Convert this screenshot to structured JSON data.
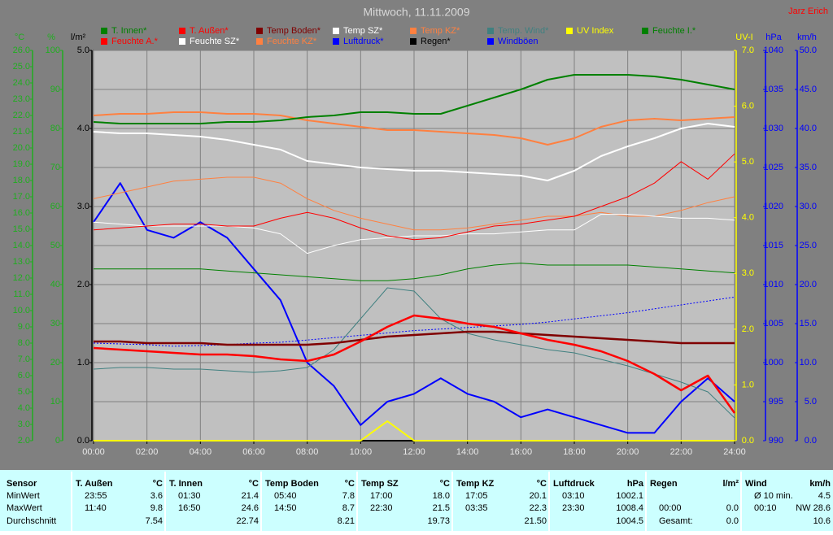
{
  "chart_data": {
    "type": "line",
    "title": "Mittwoch, 11.11.2009",
    "author": "Jarz Erich",
    "x": [
      0,
      1,
      2,
      3,
      4,
      5,
      6,
      7,
      8,
      9,
      10,
      11,
      12,
      13,
      14,
      15,
      16,
      17,
      18,
      19,
      20,
      21,
      22,
      23,
      24
    ],
    "xlim": [
      0,
      24
    ],
    "xticks": [
      {
        "value": 0,
        "label": "00:00"
      },
      {
        "value": 2,
        "label": "02:00"
      },
      {
        "value": 4,
        "label": "04:00"
      },
      {
        "value": 6,
        "label": "06:00"
      },
      {
        "value": 8,
        "label": "08:00"
      },
      {
        "value": 10,
        "label": "10:00"
      },
      {
        "value": 12,
        "label": "12:00"
      },
      {
        "value": 14,
        "label": "14:00"
      },
      {
        "value": 16,
        "label": "16:00"
      },
      {
        "value": 18,
        "label": "18:00"
      },
      {
        "value": 20,
        "label": "20:00"
      },
      {
        "value": 22,
        "label": "22:00"
      },
      {
        "value": 24,
        "label": "24:00"
      }
    ],
    "grid": true,
    "axes": [
      {
        "label": "°C",
        "color": "#1fae1f",
        "ylim": [
          2,
          26
        ],
        "yticks": [
          {
            "value": 2,
            "label": "2.0"
          },
          {
            "value": 3,
            "label": "3.0"
          },
          {
            "value": 4,
            "label": "4.0"
          },
          {
            "value": 5,
            "label": "5.0"
          },
          {
            "value": 6,
            "label": "6.0"
          },
          {
            "value": 7,
            "label": "7.0"
          },
          {
            "value": 8,
            "label": "8.0"
          },
          {
            "value": 9,
            "label": "9.0"
          },
          {
            "value": 10,
            "label": "10.0"
          },
          {
            "value": 11,
            "label": "11.0"
          },
          {
            "value": 12,
            "label": "12.0"
          },
          {
            "value": 13,
            "label": "13.0"
          },
          {
            "value": 14,
            "label": "14.0"
          },
          {
            "value": 15,
            "label": "15.0"
          },
          {
            "value": 16,
            "label": "16.0"
          },
          {
            "value": 17,
            "label": "17.0"
          },
          {
            "value": 18,
            "label": "18.0"
          },
          {
            "value": 19,
            "label": "19.0"
          },
          {
            "value": 20,
            "label": "20.0"
          },
          {
            "value": 21,
            "label": "21.0"
          },
          {
            "value": 22,
            "label": "22.0"
          },
          {
            "value": 23,
            "label": "23.0"
          },
          {
            "value": 24,
            "label": "24.0"
          },
          {
            "value": 25,
            "label": "25.0"
          },
          {
            "value": 26,
            "label": "26.0"
          }
        ]
      },
      {
        "label": "%",
        "color": "#1fae1f",
        "ylim": [
          0,
          100
        ],
        "yticks": [
          0,
          10,
          20,
          30,
          40,
          50,
          60,
          70,
          80,
          90,
          100
        ]
      },
      {
        "label": "l/m²",
        "color": "#000000",
        "ylim": [
          0,
          5
        ],
        "yticks": [
          {
            "value": 0,
            "label": "0.0"
          },
          {
            "value": 1,
            "label": "1.0"
          },
          {
            "value": 2,
            "label": "2.0"
          },
          {
            "value": 3,
            "label": "3.0"
          },
          {
            "value": 4,
            "label": "4.0"
          },
          {
            "value": 5,
            "label": "5.0"
          }
        ]
      },
      {
        "label": "UV-I",
        "color": "#ffff00",
        "ylim": [
          0,
          7
        ],
        "yticks": [
          {
            "value": 0,
            "label": "0.0"
          },
          {
            "value": 1,
            "label": "1.0"
          },
          {
            "value": 2,
            "label": "2.0"
          },
          {
            "value": 3,
            "label": "3.0"
          },
          {
            "value": 4,
            "label": "4.0"
          },
          {
            "value": 5,
            "label": "5.0"
          },
          {
            "value": 6,
            "label": "6.0"
          },
          {
            "value": 7,
            "label": "7.0"
          }
        ]
      },
      {
        "label": "hPa",
        "color": "#0000ff",
        "ylim": [
          990,
          1040
        ],
        "yticks": [
          990,
          995,
          1000,
          1005,
          1010,
          1015,
          1020,
          1025,
          1030,
          1035,
          1040
        ]
      },
      {
        "label": "km/h",
        "color": "#0000ff",
        "ylim": [
          0,
          50
        ],
        "yticks": [
          {
            "value": 0,
            "label": "0.0"
          },
          {
            "value": 5,
            "label": "5.0"
          },
          {
            "value": 10,
            "label": "10.0"
          },
          {
            "value": 15,
            "label": "15.0"
          },
          {
            "value": 20,
            "label": "20.0"
          },
          {
            "value": 25,
            "label": "25.0"
          },
          {
            "value": 30,
            "label": "30.0"
          },
          {
            "value": 35,
            "label": "35.0"
          },
          {
            "value": 40,
            "label": "40.0"
          },
          {
            "value": 45,
            "label": "45.0"
          },
          {
            "value": 50,
            "label": "50.0"
          }
        ]
      }
    ],
    "series": [
      {
        "name": "T. Innen*",
        "color": "#008000",
        "axis": 0,
        "line_width": 2,
        "values": [
          21.6,
          21.5,
          21.5,
          21.5,
          21.5,
          21.6,
          21.6,
          21.7,
          21.9,
          22.0,
          22.2,
          22.2,
          22.1,
          22.1,
          22.6,
          23.1,
          23.6,
          24.2,
          24.5,
          24.5,
          24.5,
          24.4,
          24.2,
          23.9,
          23.6
        ]
      },
      {
        "name": "T. Außen*",
        "color": "#ff0000",
        "axis": 0,
        "line_width": 2.5,
        "values": [
          7.7,
          7.6,
          7.5,
          7.4,
          7.3,
          7.3,
          7.2,
          7.0,
          6.9,
          7.3,
          8.1,
          9.0,
          9.7,
          9.5,
          9.2,
          9.0,
          8.6,
          8.2,
          7.9,
          7.5,
          6.9,
          6.1,
          5.1,
          6.0,
          3.7
        ]
      },
      {
        "name": "Temp Boden*",
        "color": "#800000",
        "axis": 0,
        "line_width": 2.5,
        "values": [
          8.1,
          8.1,
          8.0,
          8.0,
          8.0,
          7.9,
          7.9,
          7.9,
          7.9,
          8.0,
          8.2,
          8.4,
          8.5,
          8.6,
          8.7,
          8.7,
          8.6,
          8.5,
          8.4,
          8.3,
          8.2,
          8.1,
          8.0,
          8.0,
          8.0
        ]
      },
      {
        "name": "Temp SZ*",
        "color": "#ffffff",
        "axis": 0,
        "line_width": 2,
        "values": [
          21.0,
          20.9,
          20.9,
          20.8,
          20.7,
          20.5,
          20.2,
          19.9,
          19.2,
          19.0,
          18.8,
          18.7,
          18.6,
          18.6,
          18.5,
          18.4,
          18.3,
          18.0,
          18.6,
          19.5,
          20.1,
          20.6,
          21.2,
          21.5,
          21.3
        ]
      },
      {
        "name": "Temp KZ*",
        "color": "#ff8040",
        "axis": 0,
        "line_width": 2,
        "values": [
          22.0,
          22.1,
          22.1,
          22.2,
          22.2,
          22.1,
          22.1,
          22.0,
          21.7,
          21.5,
          21.3,
          21.1,
          21.1,
          21.0,
          20.9,
          20.8,
          20.6,
          20.2,
          20.6,
          21.3,
          21.7,
          21.8,
          21.7,
          21.8,
          21.9
        ]
      },
      {
        "name": "Temp. Wind*",
        "color": "#408080",
        "axis": 0,
        "line_width": 1,
        "values": [
          6.4,
          6.5,
          6.5,
          6.4,
          6.4,
          6.3,
          6.2,
          6.3,
          6.5,
          7.6,
          9.5,
          11.4,
          11.2,
          9.5,
          8.6,
          8.2,
          7.9,
          7.6,
          7.4,
          7.0,
          6.6,
          6.1,
          5.6,
          5.0,
          3.4
        ]
      },
      {
        "name": "UV Index",
        "color": "#ffff00",
        "axis": 3,
        "line_width": 2,
        "values": [
          0,
          0,
          0,
          0,
          0,
          0,
          0,
          0,
          0,
          0,
          0,
          0.35,
          0,
          0,
          0,
          0,
          0,
          0,
          0,
          0,
          0,
          0,
          0,
          0,
          0
        ]
      },
      {
        "name": "Feuchte I.*",
        "color": "#008000",
        "axis": 1,
        "line_width": 1,
        "values": [
          44,
          44,
          44,
          44,
          44,
          43.5,
          43,
          42.5,
          42,
          41.5,
          41,
          41,
          41.5,
          42.5,
          44,
          45,
          45.5,
          45,
          45,
          45,
          45,
          44.5,
          44,
          43.5,
          43
        ]
      },
      {
        "name": "Feuchte A.*",
        "color": "#ff0000",
        "axis": 1,
        "line_width": 1,
        "values": [
          54,
          54.5,
          55,
          55.5,
          55.5,
          55,
          55,
          57,
          58.5,
          57,
          54.5,
          52.5,
          51.5,
          52,
          53.5,
          55,
          55.5,
          56.5,
          57.5,
          60,
          62.5,
          66,
          71.5,
          67,
          73.5
        ]
      },
      {
        "name": "Feuchte SZ*",
        "color": "#ffffff",
        "axis": 1,
        "line_width": 1,
        "values": [
          56,
          55.5,
          55,
          55,
          55,
          55,
          54.5,
          53,
          48,
          50,
          51.5,
          52,
          52.5,
          52.5,
          53,
          53,
          53.5,
          54,
          54,
          58,
          58,
          57.5,
          57,
          57,
          56.5
        ]
      },
      {
        "name": "Feuchte KZ*",
        "color": "#ff8040",
        "axis": 1,
        "line_width": 1,
        "values": [
          62,
          63.5,
          65,
          66.5,
          67,
          67.5,
          67.5,
          66,
          62,
          59,
          57,
          55.5,
          54,
          54,
          54.5,
          55.5,
          56.5,
          57.5,
          57.5,
          58.5,
          57.5,
          57.5,
          59,
          61,
          62.5
        ]
      },
      {
        "name": "Luftdruck*",
        "color": "#0000ff",
        "axis": 4,
        "line_width": 1,
        "style": "dotted",
        "values": [
          1002.5,
          1002.4,
          1002.3,
          1002.1,
          1002.2,
          1002.3,
          1002.5,
          1002.6,
          1002.9,
          1003.2,
          1003.5,
          1003.8,
          1004.1,
          1004.3,
          1004.5,
          1004.7,
          1004.9,
          1005.2,
          1005.6,
          1006.0,
          1006.4,
          1006.9,
          1007.4,
          1007.9,
          1008.4
        ]
      },
      {
        "name": "Regen*",
        "color": "#000000",
        "axis": 2,
        "line_width": 2,
        "values": [
          0,
          0,
          0,
          0,
          0,
          0,
          0,
          0,
          0,
          0,
          0,
          0,
          0,
          0,
          0,
          0,
          0,
          0,
          0,
          0,
          0,
          0,
          0,
          0,
          0
        ]
      },
      {
        "name": "Windböen",
        "color": "#0000ff",
        "axis": 5,
        "line_width": 2,
        "values": [
          28,
          33,
          27,
          26,
          28,
          26,
          22,
          18,
          10,
          7,
          2,
          5,
          6,
          8,
          6,
          5,
          3,
          4,
          3,
          2,
          1,
          1,
          5,
          8,
          5
        ]
      }
    ]
  },
  "table": {
    "row_labels": [
      "Sensor",
      "MinWert",
      "MaxWert",
      "Durchschnitt"
    ],
    "groups": [
      {
        "name": "T. Außen",
        "unit": "°C",
        "rows": [
          [
            "23:55",
            "3.6"
          ],
          [
            "11:40",
            "9.8"
          ],
          [
            "7.54"
          ]
        ]
      },
      {
        "name": "T. Innen",
        "unit": "°C",
        "rows": [
          [
            "01:30",
            "21.4"
          ],
          [
            "16:50",
            "24.6"
          ],
          [
            "22.74"
          ]
        ]
      },
      {
        "name": "Temp Boden",
        "unit": "°C",
        "rows": [
          [
            "05:40",
            "7.8"
          ],
          [
            "14:50",
            "8.7"
          ],
          [
            "8.21"
          ]
        ]
      },
      {
        "name": "Temp SZ",
        "unit": "°C",
        "rows": [
          [
            "17:00",
            "18.0"
          ],
          [
            "22:30",
            "21.5"
          ],
          [
            "19.73"
          ]
        ]
      },
      {
        "name": "Temp KZ",
        "unit": "°C",
        "rows": [
          [
            "17:05",
            "20.1"
          ],
          [
            "03:35",
            "22.3"
          ],
          [
            "21.50"
          ]
        ]
      },
      {
        "name": "Luftdruck",
        "unit": "hPa",
        "rows": [
          [
            "03:10",
            "1002.1"
          ],
          [
            "23:30",
            "1008.4"
          ],
          [
            "1004.5"
          ]
        ]
      },
      {
        "name": "Regen",
        "unit": "l/m²",
        "rows": [
          [],
          [
            "00:00",
            "0.0"
          ],
          [
            "Gesamt:",
            "0.0"
          ]
        ]
      },
      {
        "name": "Wind",
        "unit": "km/h",
        "rows": [
          [
            "Ø 10 min.",
            "4.5"
          ],
          [
            "00:10",
            "NW 28.6"
          ],
          [
            "10.6"
          ]
        ]
      }
    ]
  }
}
